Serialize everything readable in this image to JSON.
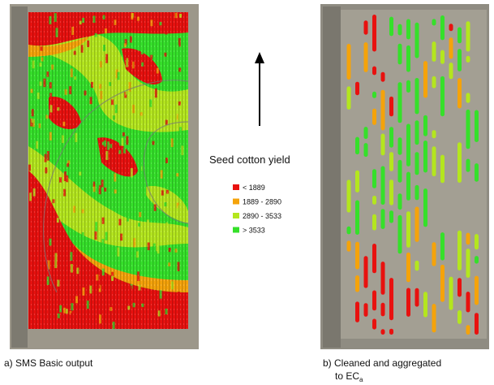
{
  "legend": {
    "title": "Seed cotton yield",
    "items": [
      {
        "label": "< 1889",
        "color": "#e8110f"
      },
      {
        "label": "1889 - 2890",
        "color": "#f5a30a"
      },
      {
        "label": "2890 - 3533",
        "color": "#b4e61e"
      },
      {
        "label": "> 3533",
        "color": "#35e02a"
      }
    ]
  },
  "caption_a": "a) SMS Basic output",
  "caption_b": {
    "line1": "b) Cleaned and aggregated",
    "line2": "to EC",
    "subscript": "a"
  }
}
